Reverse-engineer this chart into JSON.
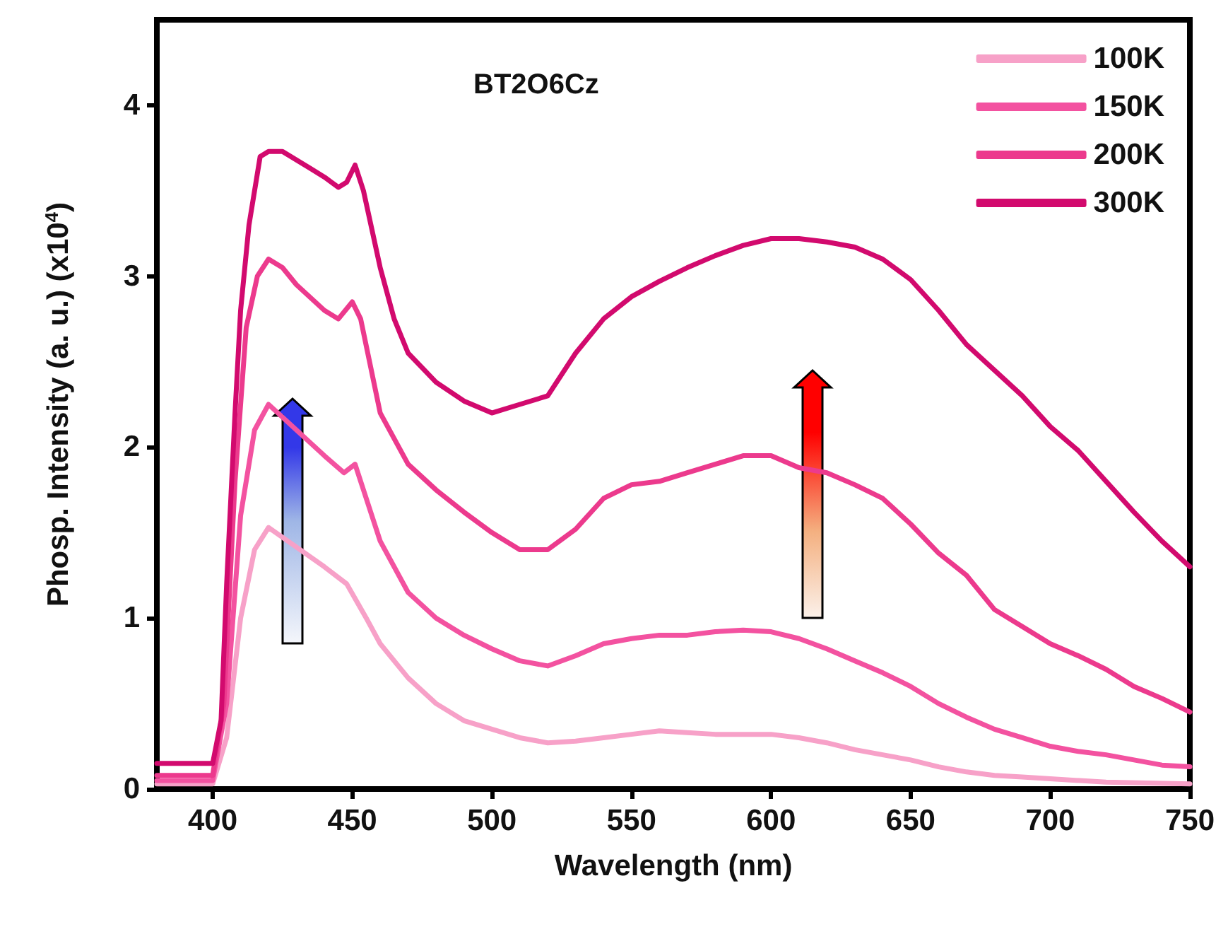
{
  "chart_data": {
    "type": "line",
    "xlabel": "Wavelength (nm)",
    "ylabel": "Phosp. Intensity (a. u.) (x10$^{4}$)",
    "annotations": [
      "BT2O6Cz"
    ],
    "xlim": [
      380,
      750
    ],
    "xticks": [
      400,
      450,
      500,
      550,
      600,
      650,
      700,
      750
    ],
    "ylim": [
      0,
      4.5
    ],
    "yticks": [
      0,
      1,
      2,
      3,
      4
    ],
    "grid": false,
    "legend": "top right",
    "marker": "none",
    "line_style": "solid",
    "series": [
      {
        "name": "100K",
        "color": "#f7a1c8",
        "x": [
          380,
          400,
          405,
          410,
          415,
          420,
          440,
          448,
          455,
          460,
          470,
          480,
          490,
          500,
          510,
          520,
          530,
          540,
          550,
          560,
          570,
          580,
          590,
          600,
          610,
          620,
          630,
          640,
          650,
          660,
          670,
          680,
          690,
          700,
          720,
          750
        ],
        "values": [
          0.03,
          0.03,
          0.3,
          1.0,
          1.4,
          1.53,
          1.3,
          1.2,
          1.0,
          0.85,
          0.65,
          0.5,
          0.4,
          0.35,
          0.3,
          0.27,
          0.28,
          0.3,
          0.32,
          0.34,
          0.33,
          0.32,
          0.32,
          0.32,
          0.3,
          0.27,
          0.23,
          0.2,
          0.17,
          0.13,
          0.1,
          0.08,
          0.07,
          0.06,
          0.04,
          0.03
        ]
      },
      {
        "name": "150K",
        "color": "#f352a0",
        "x": [
          380,
          400,
          405,
          410,
          415,
          420,
          440,
          447,
          451,
          455,
          460,
          470,
          480,
          490,
          500,
          510,
          520,
          530,
          540,
          550,
          560,
          570,
          580,
          590,
          600,
          610,
          620,
          630,
          640,
          650,
          660,
          670,
          680,
          690,
          700,
          710,
          720,
          730,
          740,
          750
        ],
        "values": [
          0.05,
          0.05,
          0.5,
          1.6,
          2.1,
          2.25,
          1.95,
          1.85,
          1.9,
          1.7,
          1.45,
          1.15,
          1.0,
          0.9,
          0.82,
          0.75,
          0.72,
          0.78,
          0.85,
          0.88,
          0.9,
          0.9,
          0.92,
          0.93,
          0.92,
          0.88,
          0.82,
          0.75,
          0.68,
          0.6,
          0.5,
          0.42,
          0.35,
          0.3,
          0.25,
          0.22,
          0.2,
          0.17,
          0.14,
          0.13
        ]
      },
      {
        "name": "200K",
        "color": "#ec3a8d",
        "x": [
          380,
          400,
          404,
          408,
          412,
          416,
          420,
          425,
          430,
          440,
          445,
          450,
          453,
          460,
          470,
          480,
          490,
          500,
          510,
          520,
          530,
          540,
          550,
          560,
          570,
          580,
          590,
          600,
          610,
          620,
          630,
          640,
          650,
          660,
          670,
          680,
          690,
          700,
          710,
          720,
          730,
          740,
          750
        ],
        "values": [
          0.08,
          0.08,
          0.5,
          1.8,
          2.7,
          3.0,
          3.1,
          3.05,
          2.95,
          2.8,
          2.75,
          2.85,
          2.75,
          2.2,
          1.9,
          1.75,
          1.62,
          1.5,
          1.4,
          1.4,
          1.52,
          1.7,
          1.78,
          1.8,
          1.85,
          1.9,
          1.95,
          1.95,
          1.88,
          1.85,
          1.78,
          1.7,
          1.55,
          1.38,
          1.25,
          1.05,
          0.95,
          0.85,
          0.78,
          0.7,
          0.6,
          0.53,
          0.45
        ]
      },
      {
        "name": "300K",
        "color": "#d20a6e",
        "x": [
          380,
          400,
          403,
          405,
          408,
          410,
          413,
          417,
          420,
          425,
          430,
          435,
          440,
          445,
          448,
          451,
          454,
          460,
          465,
          470,
          480,
          490,
          500,
          510,
          520,
          530,
          540,
          550,
          560,
          570,
          580,
          590,
          600,
          610,
          620,
          630,
          640,
          650,
          660,
          670,
          680,
          690,
          700,
          710,
          720,
          730,
          740,
          750
        ],
        "values": [
          0.15,
          0.15,
          0.4,
          1.2,
          2.2,
          2.8,
          3.3,
          3.7,
          3.73,
          3.73,
          3.68,
          3.63,
          3.58,
          3.52,
          3.55,
          3.65,
          3.5,
          3.05,
          2.75,
          2.55,
          2.38,
          2.27,
          2.2,
          2.25,
          2.3,
          2.55,
          2.75,
          2.88,
          2.97,
          3.05,
          3.12,
          3.18,
          3.22,
          3.22,
          3.2,
          3.17,
          3.1,
          2.98,
          2.8,
          2.6,
          2.45,
          2.3,
          2.12,
          1.98,
          1.8,
          1.62,
          1.45,
          1.3
        ]
      }
    ]
  }
}
